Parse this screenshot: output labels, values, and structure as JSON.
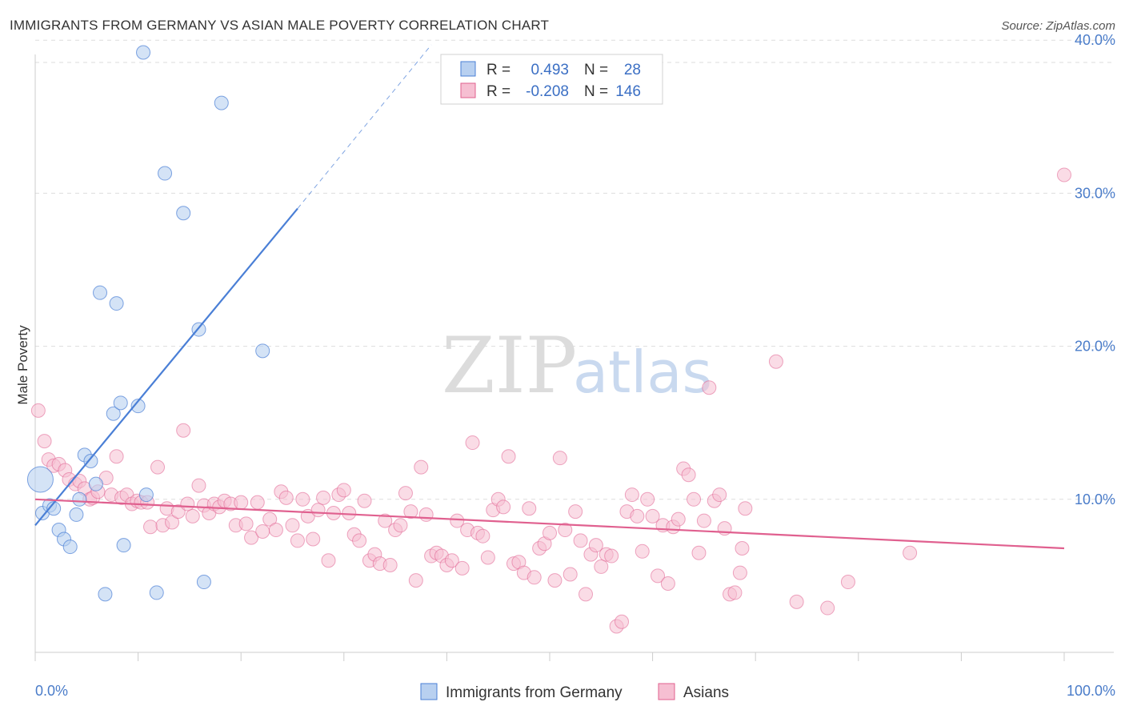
{
  "title": "IMMIGRANTS FROM GERMANY VS ASIAN MALE POVERTY CORRELATION CHART",
  "source": "Source: ZipAtlas.com",
  "watermark": {
    "zip": "ZIP",
    "atlas": "atlas"
  },
  "colors": {
    "blue": "#4a7fd6",
    "blue_fill": "#b8d0f0",
    "pink": "#e0608f",
    "pink_fill": "#f6bfd2",
    "tick": "#4a7cc9"
  },
  "legend": {
    "rows": [
      {
        "r_label": "R =",
        "r_value": "0.493",
        "n_label": "N =",
        "n_value": "28"
      },
      {
        "r_label": "R =",
        "r_value": "-0.208",
        "n_label": "N =",
        "n_value": "146"
      }
    ]
  },
  "bottom_legend": [
    "Immigrants from Germany",
    "Asians"
  ],
  "chart_data": {
    "type": "scatter",
    "xlabel": "",
    "ylabel": "Male Poverty",
    "xlim": [
      0,
      100
    ],
    "ylim": [
      0,
      42
    ],
    "x_tick_labels": {
      "min": "0.0%",
      "max": "100.0%"
    },
    "y_ticks": [
      {
        "value": 10,
        "label": "10.0%"
      },
      {
        "value": 20,
        "label": "20.0%"
      },
      {
        "value": 30,
        "label": "30.0%"
      },
      {
        "value": 40,
        "label": "40.0%"
      }
    ],
    "grid": "horizontal dashed",
    "legend_position": "top-center",
    "series": [
      {
        "name": "Immigrants from Germany",
        "color": "#4a7fd6",
        "trend": {
          "x0": 0,
          "y0": 8.3,
          "x1": 25.5,
          "y1": 29.0,
          "dash_to_x": 38.5,
          "dash_to_y": 39.7
        },
        "points": [
          [
            0.5,
            11.3
          ],
          [
            0.7,
            9.1
          ],
          [
            1.4,
            9.6
          ],
          [
            1.8,
            9.4
          ],
          [
            2.3,
            8.0
          ],
          [
            2.8,
            7.4
          ],
          [
            3.4,
            6.9
          ],
          [
            4.0,
            9.0
          ],
          [
            4.3,
            10.0
          ],
          [
            4.8,
            12.9
          ],
          [
            5.4,
            12.5
          ],
          [
            5.9,
            11.0
          ],
          [
            6.3,
            23.5
          ],
          [
            6.8,
            3.8
          ],
          [
            7.6,
            15.6
          ],
          [
            7.9,
            22.8
          ],
          [
            8.3,
            16.3
          ],
          [
            8.6,
            7.0
          ],
          [
            10.0,
            16.1
          ],
          [
            10.5,
            39.2
          ],
          [
            10.8,
            10.3
          ],
          [
            11.8,
            3.9
          ],
          [
            12.6,
            31.3
          ],
          [
            14.4,
            28.7
          ],
          [
            15.9,
            21.1
          ],
          [
            16.4,
            4.6
          ],
          [
            18.1,
            35.9
          ],
          [
            22.1,
            19.7
          ]
        ]
      },
      {
        "name": "Asians",
        "color": "#e0608f",
        "trend": {
          "x0": 0,
          "y0": 10.0,
          "x1": 100,
          "y1": 6.8
        },
        "points": [
          [
            0.3,
            15.8
          ],
          [
            0.9,
            13.8
          ],
          [
            1.3,
            12.6
          ],
          [
            1.8,
            12.2
          ],
          [
            2.3,
            12.3
          ],
          [
            2.9,
            11.9
          ],
          [
            3.3,
            11.3
          ],
          [
            3.9,
            11.0
          ],
          [
            4.3,
            11.2
          ],
          [
            4.8,
            10.7
          ],
          [
            5.3,
            10.0
          ],
          [
            5.6,
            10.1
          ],
          [
            6.1,
            10.5
          ],
          [
            6.9,
            11.4
          ],
          [
            7.4,
            10.3
          ],
          [
            7.9,
            12.8
          ],
          [
            8.4,
            10.1
          ],
          [
            8.9,
            10.3
          ],
          [
            9.4,
            9.7
          ],
          [
            9.9,
            9.9
          ],
          [
            10.3,
            9.8
          ],
          [
            10.9,
            9.8
          ],
          [
            11.2,
            8.2
          ],
          [
            11.9,
            12.1
          ],
          [
            12.4,
            8.3
          ],
          [
            12.8,
            9.4
          ],
          [
            13.3,
            8.5
          ],
          [
            13.9,
            9.2
          ],
          [
            14.4,
            14.5
          ],
          [
            14.8,
            9.7
          ],
          [
            15.3,
            8.9
          ],
          [
            15.9,
            10.9
          ],
          [
            16.4,
            9.6
          ],
          [
            16.9,
            9.1
          ],
          [
            17.4,
            9.7
          ],
          [
            17.9,
            9.5
          ],
          [
            18.4,
            9.9
          ],
          [
            19.0,
            9.7
          ],
          [
            19.5,
            8.3
          ],
          [
            20.0,
            9.8
          ],
          [
            20.5,
            8.4
          ],
          [
            21.0,
            7.5
          ],
          [
            21.6,
            9.8
          ],
          [
            22.1,
            7.9
          ],
          [
            22.8,
            8.7
          ],
          [
            23.4,
            8.0
          ],
          [
            23.9,
            10.5
          ],
          [
            24.4,
            10.1
          ],
          [
            25.0,
            8.3
          ],
          [
            25.5,
            7.3
          ],
          [
            26.0,
            10.0
          ],
          [
            26.5,
            8.9
          ],
          [
            27.0,
            7.4
          ],
          [
            27.5,
            9.3
          ],
          [
            28.0,
            10.1
          ],
          [
            28.5,
            6.0
          ],
          [
            29.0,
            9.1
          ],
          [
            29.5,
            10.3
          ],
          [
            30.0,
            10.6
          ],
          [
            30.5,
            9.1
          ],
          [
            31.0,
            7.7
          ],
          [
            31.5,
            7.3
          ],
          [
            32.0,
            9.9
          ],
          [
            32.5,
            6.0
          ],
          [
            33.0,
            6.4
          ],
          [
            33.5,
            5.8
          ],
          [
            34.0,
            8.6
          ],
          [
            34.5,
            5.7
          ],
          [
            35.0,
            8.0
          ],
          [
            35.5,
            8.3
          ],
          [
            36.0,
            10.4
          ],
          [
            36.5,
            9.2
          ],
          [
            37.0,
            4.7
          ],
          [
            37.5,
            12.1
          ],
          [
            38.0,
            9.0
          ],
          [
            38.5,
            6.3
          ],
          [
            39.0,
            6.5
          ],
          [
            39.5,
            6.3
          ],
          [
            40.0,
            5.7
          ],
          [
            40.5,
            6.0
          ],
          [
            41.0,
            8.6
          ],
          [
            41.5,
            5.5
          ],
          [
            42.0,
            8.0
          ],
          [
            42.5,
            13.7
          ],
          [
            43.0,
            7.8
          ],
          [
            43.5,
            7.6
          ],
          [
            44.0,
            6.2
          ],
          [
            44.5,
            9.3
          ],
          [
            45.0,
            10.0
          ],
          [
            45.5,
            9.5
          ],
          [
            46.0,
            12.8
          ],
          [
            46.5,
            5.8
          ],
          [
            47.0,
            5.9
          ],
          [
            47.5,
            5.2
          ],
          [
            48.0,
            9.4
          ],
          [
            48.5,
            4.9
          ],
          [
            49.0,
            6.8
          ],
          [
            49.5,
            7.1
          ],
          [
            50.0,
            7.8
          ],
          [
            50.5,
            4.7
          ],
          [
            51.0,
            12.7
          ],
          [
            51.5,
            8.0
          ],
          [
            52.0,
            5.1
          ],
          [
            52.5,
            9.2
          ],
          [
            53.0,
            7.3
          ],
          [
            53.5,
            3.8
          ],
          [
            54.0,
            6.4
          ],
          [
            54.5,
            7.0
          ],
          [
            55.0,
            5.6
          ],
          [
            55.5,
            6.4
          ],
          [
            56.0,
            6.3
          ],
          [
            56.5,
            1.7
          ],
          [
            57.0,
            2.0
          ],
          [
            57.5,
            9.2
          ],
          [
            58.0,
            10.3
          ],
          [
            58.5,
            8.9
          ],
          [
            59.0,
            6.6
          ],
          [
            59.5,
            10.0
          ],
          [
            60.0,
            8.9
          ],
          [
            60.5,
            5.0
          ],
          [
            61.0,
            8.3
          ],
          [
            61.5,
            4.5
          ],
          [
            62.0,
            8.2
          ],
          [
            62.5,
            8.7
          ],
          [
            63.0,
            12.0
          ],
          [
            63.5,
            11.6
          ],
          [
            64.0,
            10.0
          ],
          [
            64.5,
            6.5
          ],
          [
            65.0,
            8.6
          ],
          [
            65.5,
            17.3
          ],
          [
            66.0,
            9.9
          ],
          [
            66.5,
            10.3
          ],
          [
            67.0,
            8.1
          ],
          [
            67.5,
            3.8
          ],
          [
            68.0,
            3.9
          ],
          [
            68.5,
            5.2
          ],
          [
            68.7,
            6.8
          ],
          [
            69.0,
            9.4
          ],
          [
            72.0,
            19.0
          ],
          [
            74.0,
            3.3
          ],
          [
            77.0,
            2.9
          ],
          [
            79.0,
            4.6
          ],
          [
            85.0,
            6.5
          ],
          [
            100.0,
            31.2
          ]
        ]
      }
    ]
  }
}
